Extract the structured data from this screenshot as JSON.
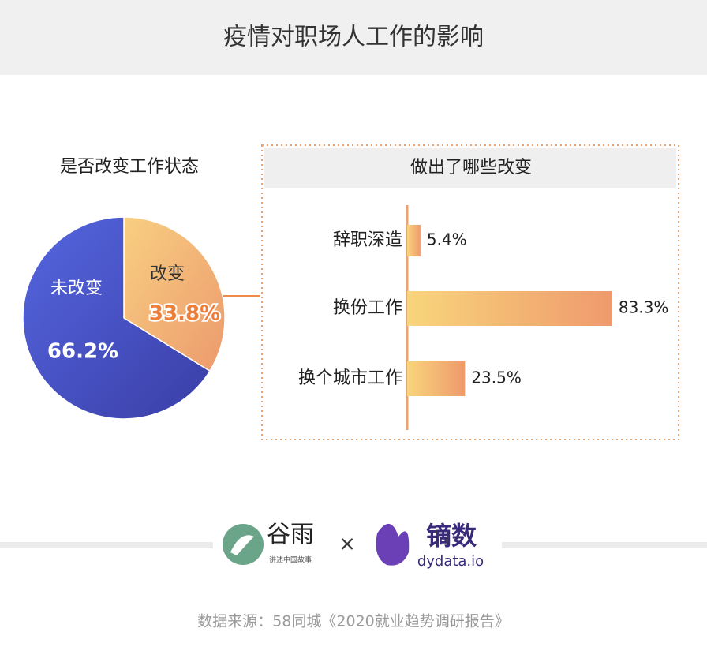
{
  "title": "疫情对职场人工作的影响",
  "chart_data": [
    {
      "type": "pie",
      "title": "是否改变工作状态",
      "categories": [
        "未改变",
        "改变"
      ],
      "values": [
        66.2,
        33.8
      ],
      "value_labels": [
        "66.2%",
        "33.8%"
      ],
      "colors": [
        "#4a5ad6",
        "#f2b576"
      ]
    },
    {
      "type": "bar",
      "title": "做出了哪些改变",
      "categories": [
        "辞职深造",
        "换份工作",
        "换个城市工作"
      ],
      "values": [
        5.4,
        83.3,
        23.5
      ],
      "value_labels": [
        "5.4%",
        "83.3%",
        "23.5%"
      ],
      "color": "#f0a26c"
    }
  ],
  "logos": {
    "left_name": "谷雨",
    "left_tagline": "讲述中国故事",
    "separator": "×",
    "right_name": "镝数",
    "right_site": "dydata.io"
  },
  "source": "数据来源：58同城《2020就业趋势调研报告》"
}
